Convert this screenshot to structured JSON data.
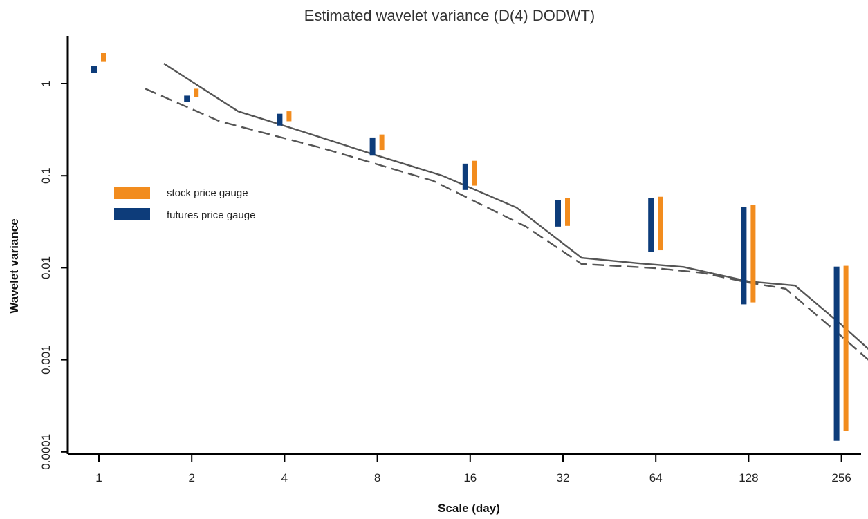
{
  "chart_data": {
    "type": "line",
    "title": "Estimated wavelet variance (D(4) DODWT)",
    "xlabel": "Scale (day)",
    "ylabel": "Wavelet variance",
    "y_scale": "log",
    "ylim": [
      0.0001,
      3
    ],
    "categories": [
      "1",
      "2",
      "4",
      "8",
      "16",
      "32",
      "64",
      "128",
      "256"
    ],
    "y_ticks": [
      {
        "value": 1,
        "label": "1"
      },
      {
        "value": 0.1,
        "label": "0.1"
      },
      {
        "value": 0.01,
        "label": "0.01"
      },
      {
        "value": 0.001,
        "label": "0.001"
      },
      {
        "value": 0.0001,
        "label": "0.0001"
      }
    ],
    "legend_position": "left",
    "series": [
      {
        "name": "stock price gauge",
        "kind": "interval",
        "color": "#F28C1E",
        "values": [
          {
            "x": "1",
            "low": 1.75,
            "high": 2.15
          },
          {
            "x": "2",
            "low": 0.72,
            "high": 0.88
          },
          {
            "x": "4",
            "low": 0.39,
            "high": 0.5
          },
          {
            "x": "8",
            "low": 0.19,
            "high": 0.28
          },
          {
            "x": "16",
            "low": 0.078,
            "high": 0.145
          },
          {
            "x": "32",
            "low": 0.0285,
            "high": 0.057
          },
          {
            "x": "64",
            "low": 0.0155,
            "high": 0.059
          },
          {
            "x": "128",
            "low": 0.0042,
            "high": 0.048
          },
          {
            "x": "256",
            "low": 0.00017,
            "high": 0.0105
          }
        ]
      },
      {
        "name": "futures price gauge",
        "kind": "interval",
        "color": "#0D3C7A",
        "values": [
          {
            "x": "1",
            "low": 1.3,
            "high": 1.55
          },
          {
            "x": "2",
            "low": 0.63,
            "high": 0.74
          },
          {
            "x": "4",
            "low": 0.35,
            "high": 0.47
          },
          {
            "x": "8",
            "low": 0.165,
            "high": 0.26
          },
          {
            "x": "16",
            "low": 0.07,
            "high": 0.135
          },
          {
            "x": "32",
            "low": 0.028,
            "high": 0.054
          },
          {
            "x": "64",
            "low": 0.0148,
            "high": 0.057
          },
          {
            "x": "128",
            "low": 0.004,
            "high": 0.046
          },
          {
            "x": "256",
            "low": 0.000132,
            "high": 0.0103
          }
        ]
      },
      {
        "kind": "line",
        "style": "solid",
        "color": "#555555",
        "points": [
          {
            "x": 0.7,
            "y": 1.65
          },
          {
            "x": 1.5,
            "y": 0.5
          },
          {
            "x": 2.2,
            "y": 0.3
          },
          {
            "x": 3.0,
            "y": 0.165
          },
          {
            "x": 3.7,
            "y": 0.1
          },
          {
            "x": 4.5,
            "y": 0.045
          },
          {
            "x": 5.2,
            "y": 0.0128
          },
          {
            "x": 5.8,
            "y": 0.0112
          },
          {
            "x": 6.3,
            "y": 0.0102
          },
          {
            "x": 7.0,
            "y": 0.0071
          },
          {
            "x": 7.5,
            "y": 0.0064
          },
          {
            "x": 8.0,
            "y": 0.0024
          },
          {
            "x": 8.5,
            "y": 0.00085
          }
        ]
      },
      {
        "kind": "line",
        "style": "dashed",
        "color": "#555555",
        "points": [
          {
            "x": 0.5,
            "y": 0.88
          },
          {
            "x": 1.3,
            "y": 0.39
          },
          {
            "x": 2.4,
            "y": 0.2
          },
          {
            "x": 3.6,
            "y": 0.088
          },
          {
            "x": 4.6,
            "y": 0.028
          },
          {
            "x": 5.2,
            "y": 0.011
          },
          {
            "x": 6.0,
            "y": 0.0099
          },
          {
            "x": 6.5,
            "y": 0.0088
          },
          {
            "x": 7.0,
            "y": 0.0069
          },
          {
            "x": 7.4,
            "y": 0.0059
          },
          {
            "x": 8.0,
            "y": 0.0018
          },
          {
            "x": 8.4,
            "y": 0.0008
          }
        ]
      }
    ]
  }
}
